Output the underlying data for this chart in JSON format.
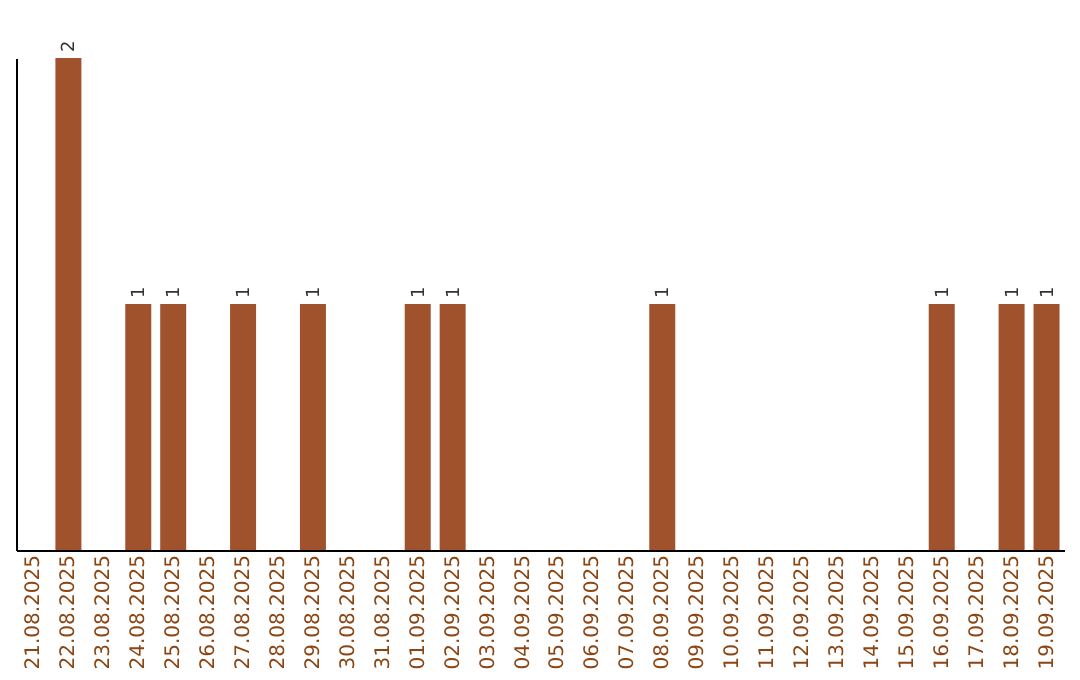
{
  "chart_data": {
    "type": "bar",
    "categories": [
      "21.08.2025",
      "22.08.2025",
      "23.08.2025",
      "24.08.2025",
      "25.08.2025",
      "26.08.2025",
      "27.08.2025",
      "28.08.2025",
      "29.08.2025",
      "30.08.2025",
      "31.08.2025",
      "01.09.2025",
      "02.09.2025",
      "03.09.2025",
      "04.09.2025",
      "05.09.2025",
      "06.09.2025",
      "07.09.2025",
      "08.09.2025",
      "09.09.2025",
      "10.09.2025",
      "11.09.2025",
      "12.09.2025",
      "13.09.2025",
      "14.09.2025",
      "15.09.2025",
      "16.09.2025",
      "17.09.2025",
      "18.09.2025",
      "19.09.2025"
    ],
    "values": [
      0,
      2,
      0,
      1,
      1,
      0,
      1,
      0,
      1,
      0,
      0,
      1,
      1,
      0,
      0,
      0,
      0,
      0,
      1,
      0,
      0,
      0,
      0,
      0,
      0,
      0,
      1,
      0,
      1,
      1
    ],
    "value_labels": [
      null,
      "2",
      null,
      "1",
      "1",
      null,
      "1",
      null,
      "1",
      null,
      null,
      "1",
      "1",
      null,
      null,
      null,
      null,
      null,
      "1",
      null,
      null,
      null,
      null,
      null,
      null,
      null,
      "1",
      null,
      "1",
      "1"
    ],
    "color": "#a0522d",
    "grid": false,
    "tick_labels": "x"
  }
}
